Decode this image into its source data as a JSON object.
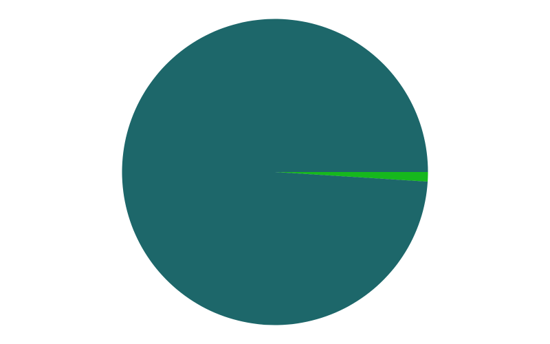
{
  "chart_data": {
    "type": "pie",
    "start_angle_deg": 0,
    "direction": "clockwise",
    "slices": [
      {
        "value": 1.0,
        "color": "#16b81d"
      },
      {
        "value": 99.0,
        "color": "#1d676a"
      }
    ],
    "title": "",
    "legend": "none"
  }
}
